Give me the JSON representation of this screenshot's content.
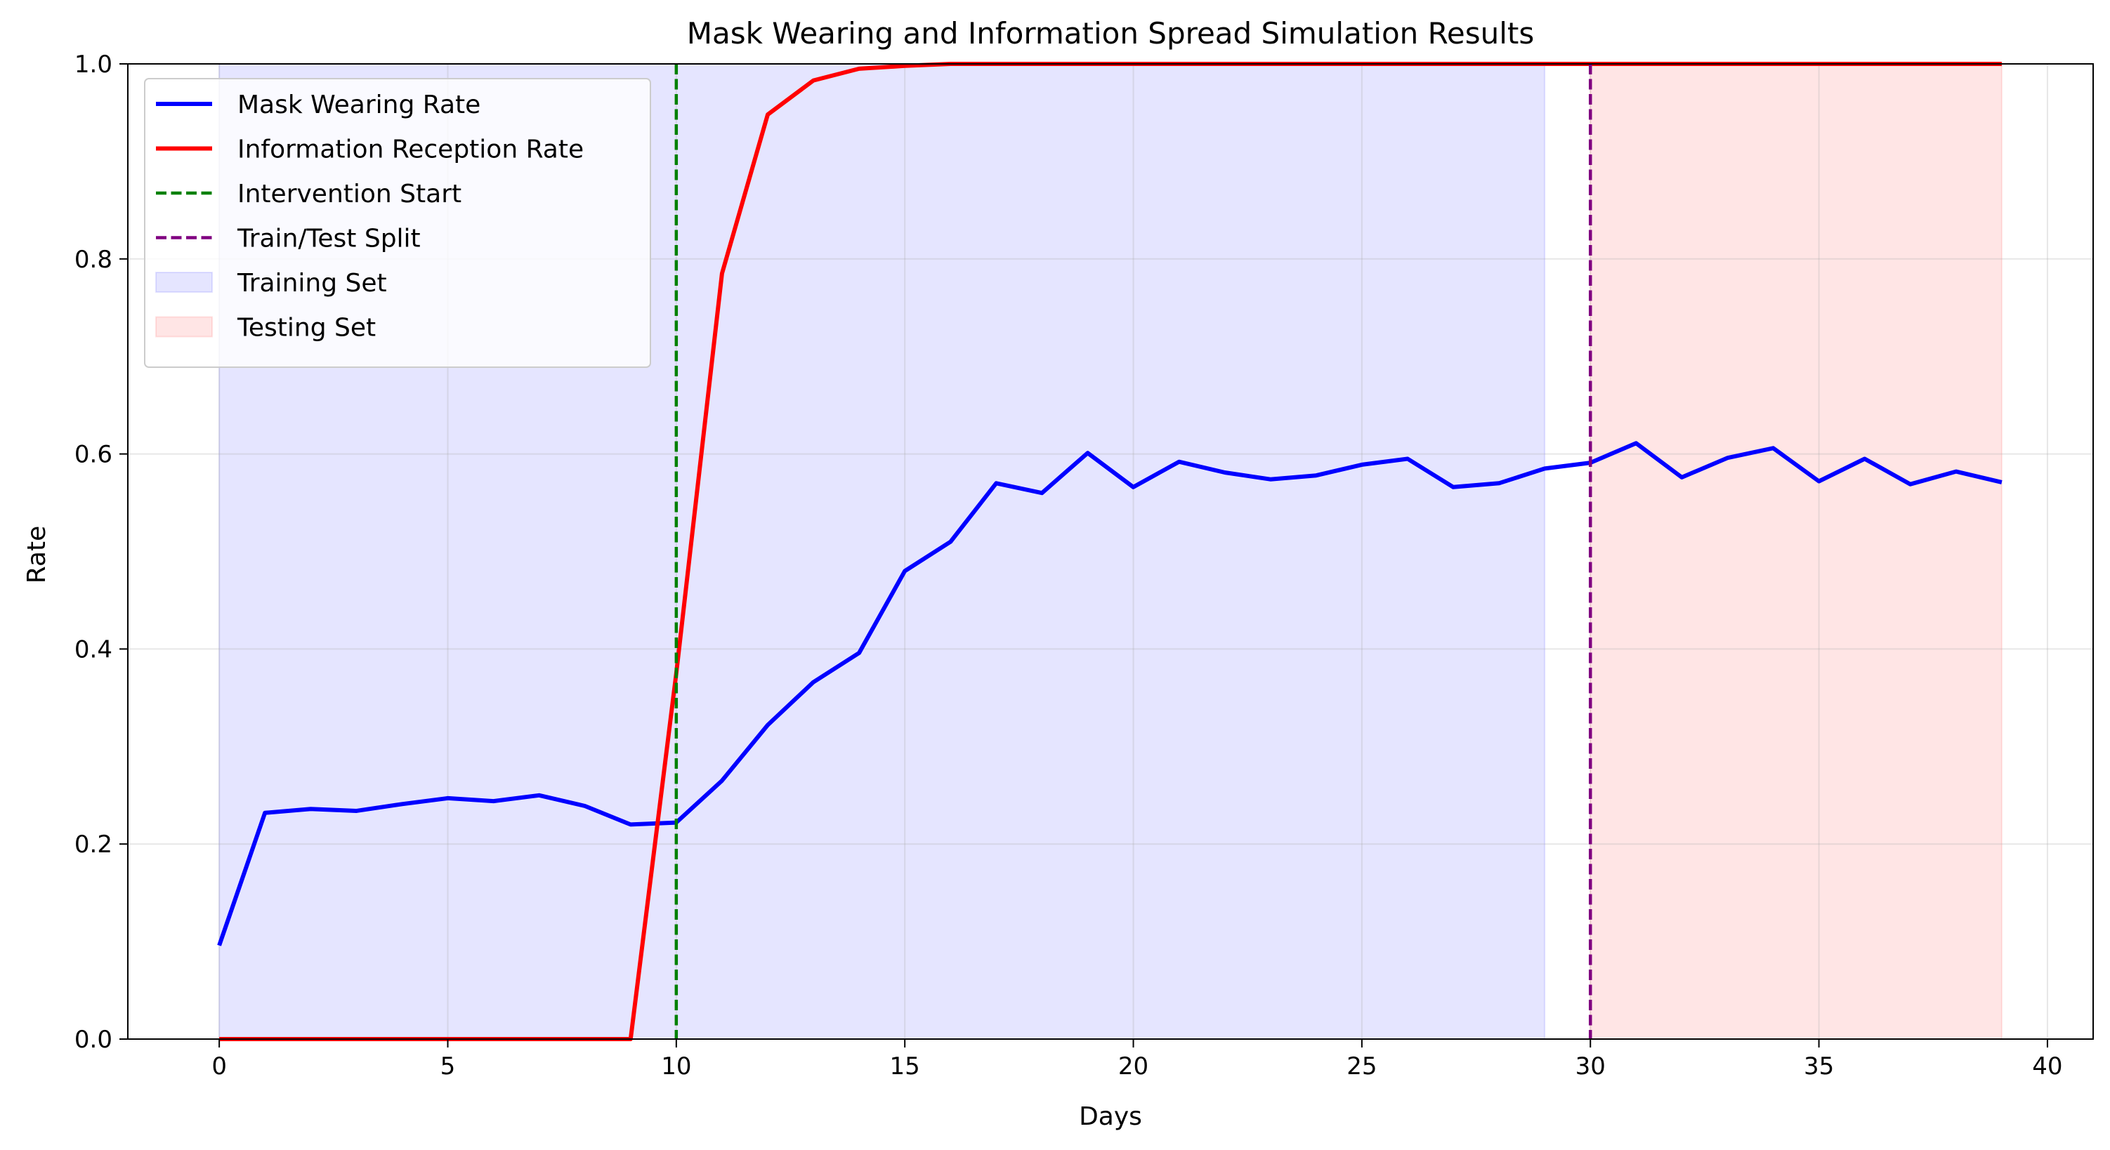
{
  "chart_data": {
    "type": "line",
    "title": "Mask Wearing and Information Spread Simulation Results",
    "xlabel": "Days",
    "ylabel": "Rate",
    "xlim": [
      -2,
      41
    ],
    "ylim": [
      0,
      1
    ],
    "xticks": [
      0,
      5,
      10,
      15,
      20,
      25,
      30,
      35,
      40
    ],
    "yticks": [
      0.0,
      0.2,
      0.4,
      0.6,
      0.8,
      1.0
    ],
    "xtick_labels": [
      "0",
      "5",
      "10",
      "15",
      "20",
      "25",
      "30",
      "35",
      "40"
    ],
    "ytick_labels": [
      "0.0",
      "0.2",
      "0.4",
      "0.6",
      "0.8",
      "1.0"
    ],
    "grid": true,
    "legend_position": "upper-left",
    "series": [
      {
        "name": "Mask Wearing Rate",
        "color": "#0000ff",
        "style": "solid",
        "x": [
          0,
          1,
          2,
          3,
          4,
          5,
          6,
          7,
          8,
          9,
          10,
          11,
          12,
          13,
          14,
          15,
          16,
          17,
          18,
          19,
          20,
          21,
          22,
          23,
          24,
          25,
          26,
          27,
          28,
          29,
          30,
          31,
          32,
          33,
          34,
          35,
          36,
          37,
          38,
          39
        ],
        "values": [
          0.096,
          0.232,
          0.236,
          0.234,
          0.241,
          0.247,
          0.244,
          0.25,
          0.239,
          0.22,
          0.222,
          0.265,
          0.322,
          0.366,
          0.396,
          0.48,
          0.51,
          0.57,
          0.56,
          0.601,
          0.566,
          0.592,
          0.581,
          0.574,
          0.578,
          0.589,
          0.595,
          0.566,
          0.57,
          0.585,
          0.591,
          0.611,
          0.576,
          0.596,
          0.606,
          0.572,
          0.595,
          0.569,
          0.582,
          0.571
        ]
      },
      {
        "name": "Information Reception Rate",
        "color": "#ff0000",
        "style": "solid",
        "x": [
          0,
          1,
          2,
          3,
          4,
          5,
          6,
          7,
          8,
          9,
          10,
          11,
          12,
          13,
          14,
          15,
          16,
          17,
          18,
          19,
          20,
          21,
          22,
          23,
          24,
          25,
          26,
          27,
          28,
          29,
          30,
          31,
          32,
          33,
          34,
          35,
          36,
          37,
          38,
          39
        ],
        "values": [
          0,
          0,
          0,
          0,
          0,
          0,
          0,
          0,
          0,
          0,
          0.375,
          0.785,
          0.948,
          0.983,
          0.995,
          0.998,
          1,
          1,
          1,
          1,
          1,
          1,
          1,
          1,
          1,
          1,
          1,
          1,
          1,
          1,
          1,
          1,
          1,
          1,
          1,
          1,
          1,
          1,
          1,
          1
        ]
      }
    ],
    "vlines": [
      {
        "name": "Intervention Start",
        "x": 10,
        "color": "#008000",
        "style": "dashed"
      },
      {
        "name": "Train/Test Split",
        "x": 30,
        "color": "#800080",
        "style": "dashed"
      }
    ],
    "spans": [
      {
        "name": "Training Set",
        "x0": 0,
        "x1": 29,
        "color": "#0000ff",
        "opacity": 0.1
      },
      {
        "name": "Testing Set",
        "x0": 30,
        "x1": 39,
        "color": "#ff0000",
        "opacity": 0.1
      }
    ],
    "legend": [
      {
        "label": "Mask Wearing Rate",
        "kind": "line",
        "color": "#0000ff",
        "style": "solid"
      },
      {
        "label": "Information Reception Rate",
        "kind": "line",
        "color": "#ff0000",
        "style": "solid"
      },
      {
        "label": "Intervention Start",
        "kind": "line",
        "color": "#008000",
        "style": "dashed"
      },
      {
        "label": "Train/Test Split",
        "kind": "line",
        "color": "#800080",
        "style": "dashed"
      },
      {
        "label": "Training Set",
        "kind": "patch",
        "color": "#0000ff",
        "style": "fill"
      },
      {
        "label": "Testing Set",
        "kind": "patch",
        "color": "#ff0000",
        "style": "fill"
      }
    ]
  }
}
